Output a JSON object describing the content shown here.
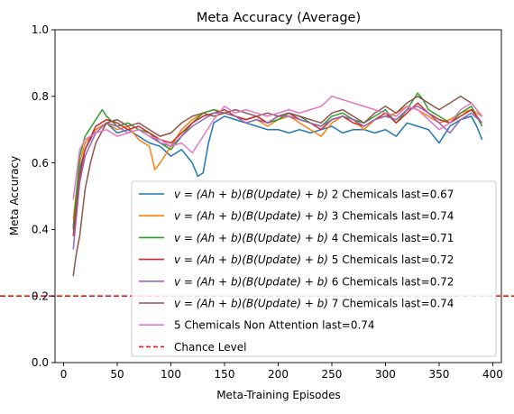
{
  "chart_data": {
    "type": "line",
    "title": "Meta Accuracy (Average)",
    "xlabel": "Meta-Training Episodes",
    "ylabel": "Meta Accuracy",
    "xlim": [
      -8,
      408
    ],
    "ylim": [
      0.0,
      1.0
    ],
    "xticks": [
      0,
      50,
      100,
      150,
      200,
      250,
      300,
      350,
      400
    ],
    "yticks": [
      0.0,
      0.2,
      0.4,
      0.6,
      0.8,
      1.0
    ],
    "xtick_labels": [
      "0",
      "50",
      "100",
      "150",
      "200",
      "250",
      "300",
      "350",
      "400"
    ],
    "ytick_labels": [
      "0.0",
      "0.2",
      "0.4",
      "0.6",
      "0.8",
      "1.0"
    ],
    "grid": false,
    "legend_position": "lower-right",
    "chance_level": {
      "name": "Chance Level",
      "value": 0.2,
      "color": "#e31a1c"
    },
    "series": [
      {
        "name": "v = (Ah + b)(B(Update) + b) 2 Chemicals last=0.67",
        "formula": "v = (Ah + b)(B(Update) + b)",
        "suffix": "2 Chemicals last=0.67",
        "color": "#1f77b4",
        "x": [
          9,
          15,
          20,
          30,
          40,
          50,
          60,
          70,
          80,
          90,
          100,
          110,
          120,
          125,
          130,
          135,
          140,
          150,
          160,
          170,
          180,
          190,
          200,
          210,
          220,
          230,
          240,
          250,
          260,
          270,
          280,
          290,
          300,
          310,
          320,
          330,
          340,
          350,
          360,
          370,
          380,
          385,
          390
        ],
        "y": [
          0.41,
          0.58,
          0.64,
          0.7,
          0.72,
          0.69,
          0.7,
          0.68,
          0.66,
          0.65,
          0.62,
          0.64,
          0.6,
          0.56,
          0.57,
          0.66,
          0.72,
          0.74,
          0.73,
          0.72,
          0.71,
          0.7,
          0.7,
          0.69,
          0.7,
          0.69,
          0.7,
          0.71,
          0.69,
          0.7,
          0.7,
          0.69,
          0.7,
          0.68,
          0.72,
          0.71,
          0.7,
          0.66,
          0.71,
          0.73,
          0.74,
          0.71,
          0.67
        ]
      },
      {
        "name": "v = (Ah + b)(B(Update) + b) 3 Chemicals last=0.74",
        "formula": "v = (Ah + b)(B(Update) + b)",
        "suffix": "3 Chemicals last=0.74",
        "color": "#ff7f0e",
        "x": [
          9,
          15,
          20,
          30,
          40,
          50,
          60,
          70,
          80,
          85,
          90,
          100,
          110,
          120,
          130,
          140,
          150,
          160,
          170,
          180,
          190,
          200,
          210,
          220,
          230,
          240,
          250,
          260,
          270,
          280,
          290,
          300,
          310,
          320,
          330,
          340,
          350,
          360,
          370,
          380,
          390
        ],
        "y": [
          0.43,
          0.6,
          0.66,
          0.7,
          0.72,
          0.7,
          0.71,
          0.67,
          0.65,
          0.58,
          0.6,
          0.65,
          0.7,
          0.73,
          0.75,
          0.76,
          0.75,
          0.74,
          0.72,
          0.73,
          0.71,
          0.73,
          0.74,
          0.72,
          0.7,
          0.68,
          0.72,
          0.74,
          0.73,
          0.7,
          0.73,
          0.74,
          0.75,
          0.77,
          0.76,
          0.74,
          0.72,
          0.73,
          0.75,
          0.76,
          0.74
        ]
      },
      {
        "name": "v = (Ah + b)(B(Update) + b) 4 Chemicals last=0.71",
        "formula": "v = (Ah + b)(B(Update) + b)",
        "suffix": "4 Chemicals last=0.71",
        "color": "#2ca02c",
        "x": [
          9,
          15,
          20,
          30,
          36,
          40,
          50,
          60,
          70,
          80,
          90,
          100,
          110,
          120,
          130,
          140,
          150,
          160,
          170,
          180,
          190,
          200,
          210,
          220,
          230,
          240,
          250,
          260,
          270,
          280,
          290,
          300,
          310,
          320,
          330,
          335,
          340,
          350,
          360,
          370,
          380,
          390
        ],
        "y": [
          0.4,
          0.62,
          0.68,
          0.73,
          0.76,
          0.74,
          0.71,
          0.72,
          0.7,
          0.69,
          0.66,
          0.64,
          0.68,
          0.72,
          0.75,
          0.76,
          0.75,
          0.74,
          0.73,
          0.74,
          0.72,
          0.73,
          0.75,
          0.74,
          0.72,
          0.71,
          0.74,
          0.75,
          0.73,
          0.72,
          0.74,
          0.76,
          0.72,
          0.76,
          0.81,
          0.79,
          0.76,
          0.74,
          0.72,
          0.75,
          0.77,
          0.71
        ]
      },
      {
        "name": "v = (Ah + b)(B(Update) + b) 5 Chemicals last=0.72",
        "formula": "v = (Ah + b)(B(Update) + b)",
        "suffix": "5 Chemicals last=0.72",
        "color": "#d62728",
        "x": [
          9,
          15,
          20,
          30,
          40,
          50,
          60,
          70,
          80,
          90,
          100,
          110,
          120,
          130,
          140,
          150,
          160,
          170,
          180,
          190,
          200,
          210,
          220,
          230,
          240,
          250,
          260,
          270,
          280,
          290,
          300,
          310,
          320,
          330,
          340,
          350,
          360,
          370,
          380,
          390
        ],
        "y": [
          0.38,
          0.56,
          0.64,
          0.71,
          0.73,
          0.72,
          0.7,
          0.71,
          0.69,
          0.67,
          0.66,
          0.69,
          0.72,
          0.74,
          0.75,
          0.76,
          0.74,
          0.73,
          0.74,
          0.72,
          0.74,
          0.75,
          0.73,
          0.72,
          0.7,
          0.73,
          0.74,
          0.72,
          0.71,
          0.73,
          0.75,
          0.72,
          0.75,
          0.78,
          0.75,
          0.73,
          0.72,
          0.74,
          0.76,
          0.72
        ]
      },
      {
        "name": "v = (Ah + b)(B(Update) + b) 6 Chemicals last=0.72",
        "formula": "v = (Ah + b)(B(Update) + b)",
        "suffix": "6 Chemicals last=0.72",
        "color": "#9467bd",
        "x": [
          9,
          15,
          20,
          30,
          40,
          50,
          60,
          70,
          80,
          90,
          100,
          110,
          120,
          130,
          140,
          150,
          160,
          170,
          180,
          190,
          200,
          210,
          220,
          230,
          240,
          250,
          260,
          270,
          280,
          290,
          300,
          310,
          320,
          330,
          340,
          350,
          360,
          370,
          380,
          390
        ],
        "y": [
          0.34,
          0.54,
          0.62,
          0.69,
          0.72,
          0.71,
          0.69,
          0.7,
          0.68,
          0.66,
          0.65,
          0.68,
          0.71,
          0.73,
          0.75,
          0.75,
          0.74,
          0.72,
          0.73,
          0.72,
          0.74,
          0.74,
          0.73,
          0.72,
          0.71,
          0.73,
          0.74,
          0.73,
          0.71,
          0.73,
          0.74,
          0.73,
          0.76,
          0.77,
          0.75,
          0.72,
          0.69,
          0.73,
          0.75,
          0.72
        ]
      },
      {
        "name": "v = (Ah + b)(B(Update) + b) 7 Chemicals last=0.74",
        "formula": "v = (Ah + b)(B(Update) + b)",
        "suffix": "7 Chemicals last=0.74",
        "color": "#8c564b",
        "x": [
          9,
          12,
          15,
          20,
          25,
          30,
          40,
          50,
          60,
          70,
          80,
          90,
          100,
          110,
          120,
          130,
          140,
          150,
          160,
          170,
          180,
          190,
          200,
          210,
          220,
          230,
          240,
          250,
          260,
          270,
          280,
          290,
          300,
          310,
          320,
          330,
          340,
          350,
          360,
          370,
          380,
          390
        ],
        "y": [
          0.26,
          0.33,
          0.38,
          0.52,
          0.6,
          0.66,
          0.72,
          0.73,
          0.71,
          0.72,
          0.7,
          0.68,
          0.69,
          0.72,
          0.74,
          0.75,
          0.74,
          0.75,
          0.76,
          0.75,
          0.74,
          0.75,
          0.74,
          0.75,
          0.74,
          0.73,
          0.72,
          0.75,
          0.76,
          0.74,
          0.72,
          0.75,
          0.77,
          0.75,
          0.78,
          0.8,
          0.78,
          0.76,
          0.78,
          0.8,
          0.78,
          0.74
        ]
      },
      {
        "name": "5 Chemicals Non Attention last=0.74",
        "formula": "",
        "suffix": "5 Chemicals Non Attention last=0.74",
        "color": "#e377c2",
        "x": [
          9,
          15,
          20,
          30,
          40,
          50,
          60,
          70,
          80,
          90,
          100,
          110,
          120,
          130,
          140,
          150,
          160,
          170,
          180,
          190,
          200,
          210,
          220,
          230,
          240,
          250,
          260,
          270,
          280,
          290,
          300,
          310,
          320,
          330,
          340,
          350,
          360,
          370,
          380,
          390
        ],
        "y": [
          0.49,
          0.64,
          0.67,
          0.69,
          0.7,
          0.68,
          0.69,
          0.7,
          0.68,
          0.67,
          0.65,
          0.66,
          0.63,
          0.68,
          0.73,
          0.77,
          0.75,
          0.76,
          0.75,
          0.74,
          0.75,
          0.76,
          0.75,
          0.76,
          0.77,
          0.8,
          0.79,
          0.78,
          0.77,
          0.76,
          0.75,
          0.74,
          0.77,
          0.76,
          0.73,
          0.7,
          0.72,
          0.76,
          0.78,
          0.74
        ]
      }
    ]
  }
}
